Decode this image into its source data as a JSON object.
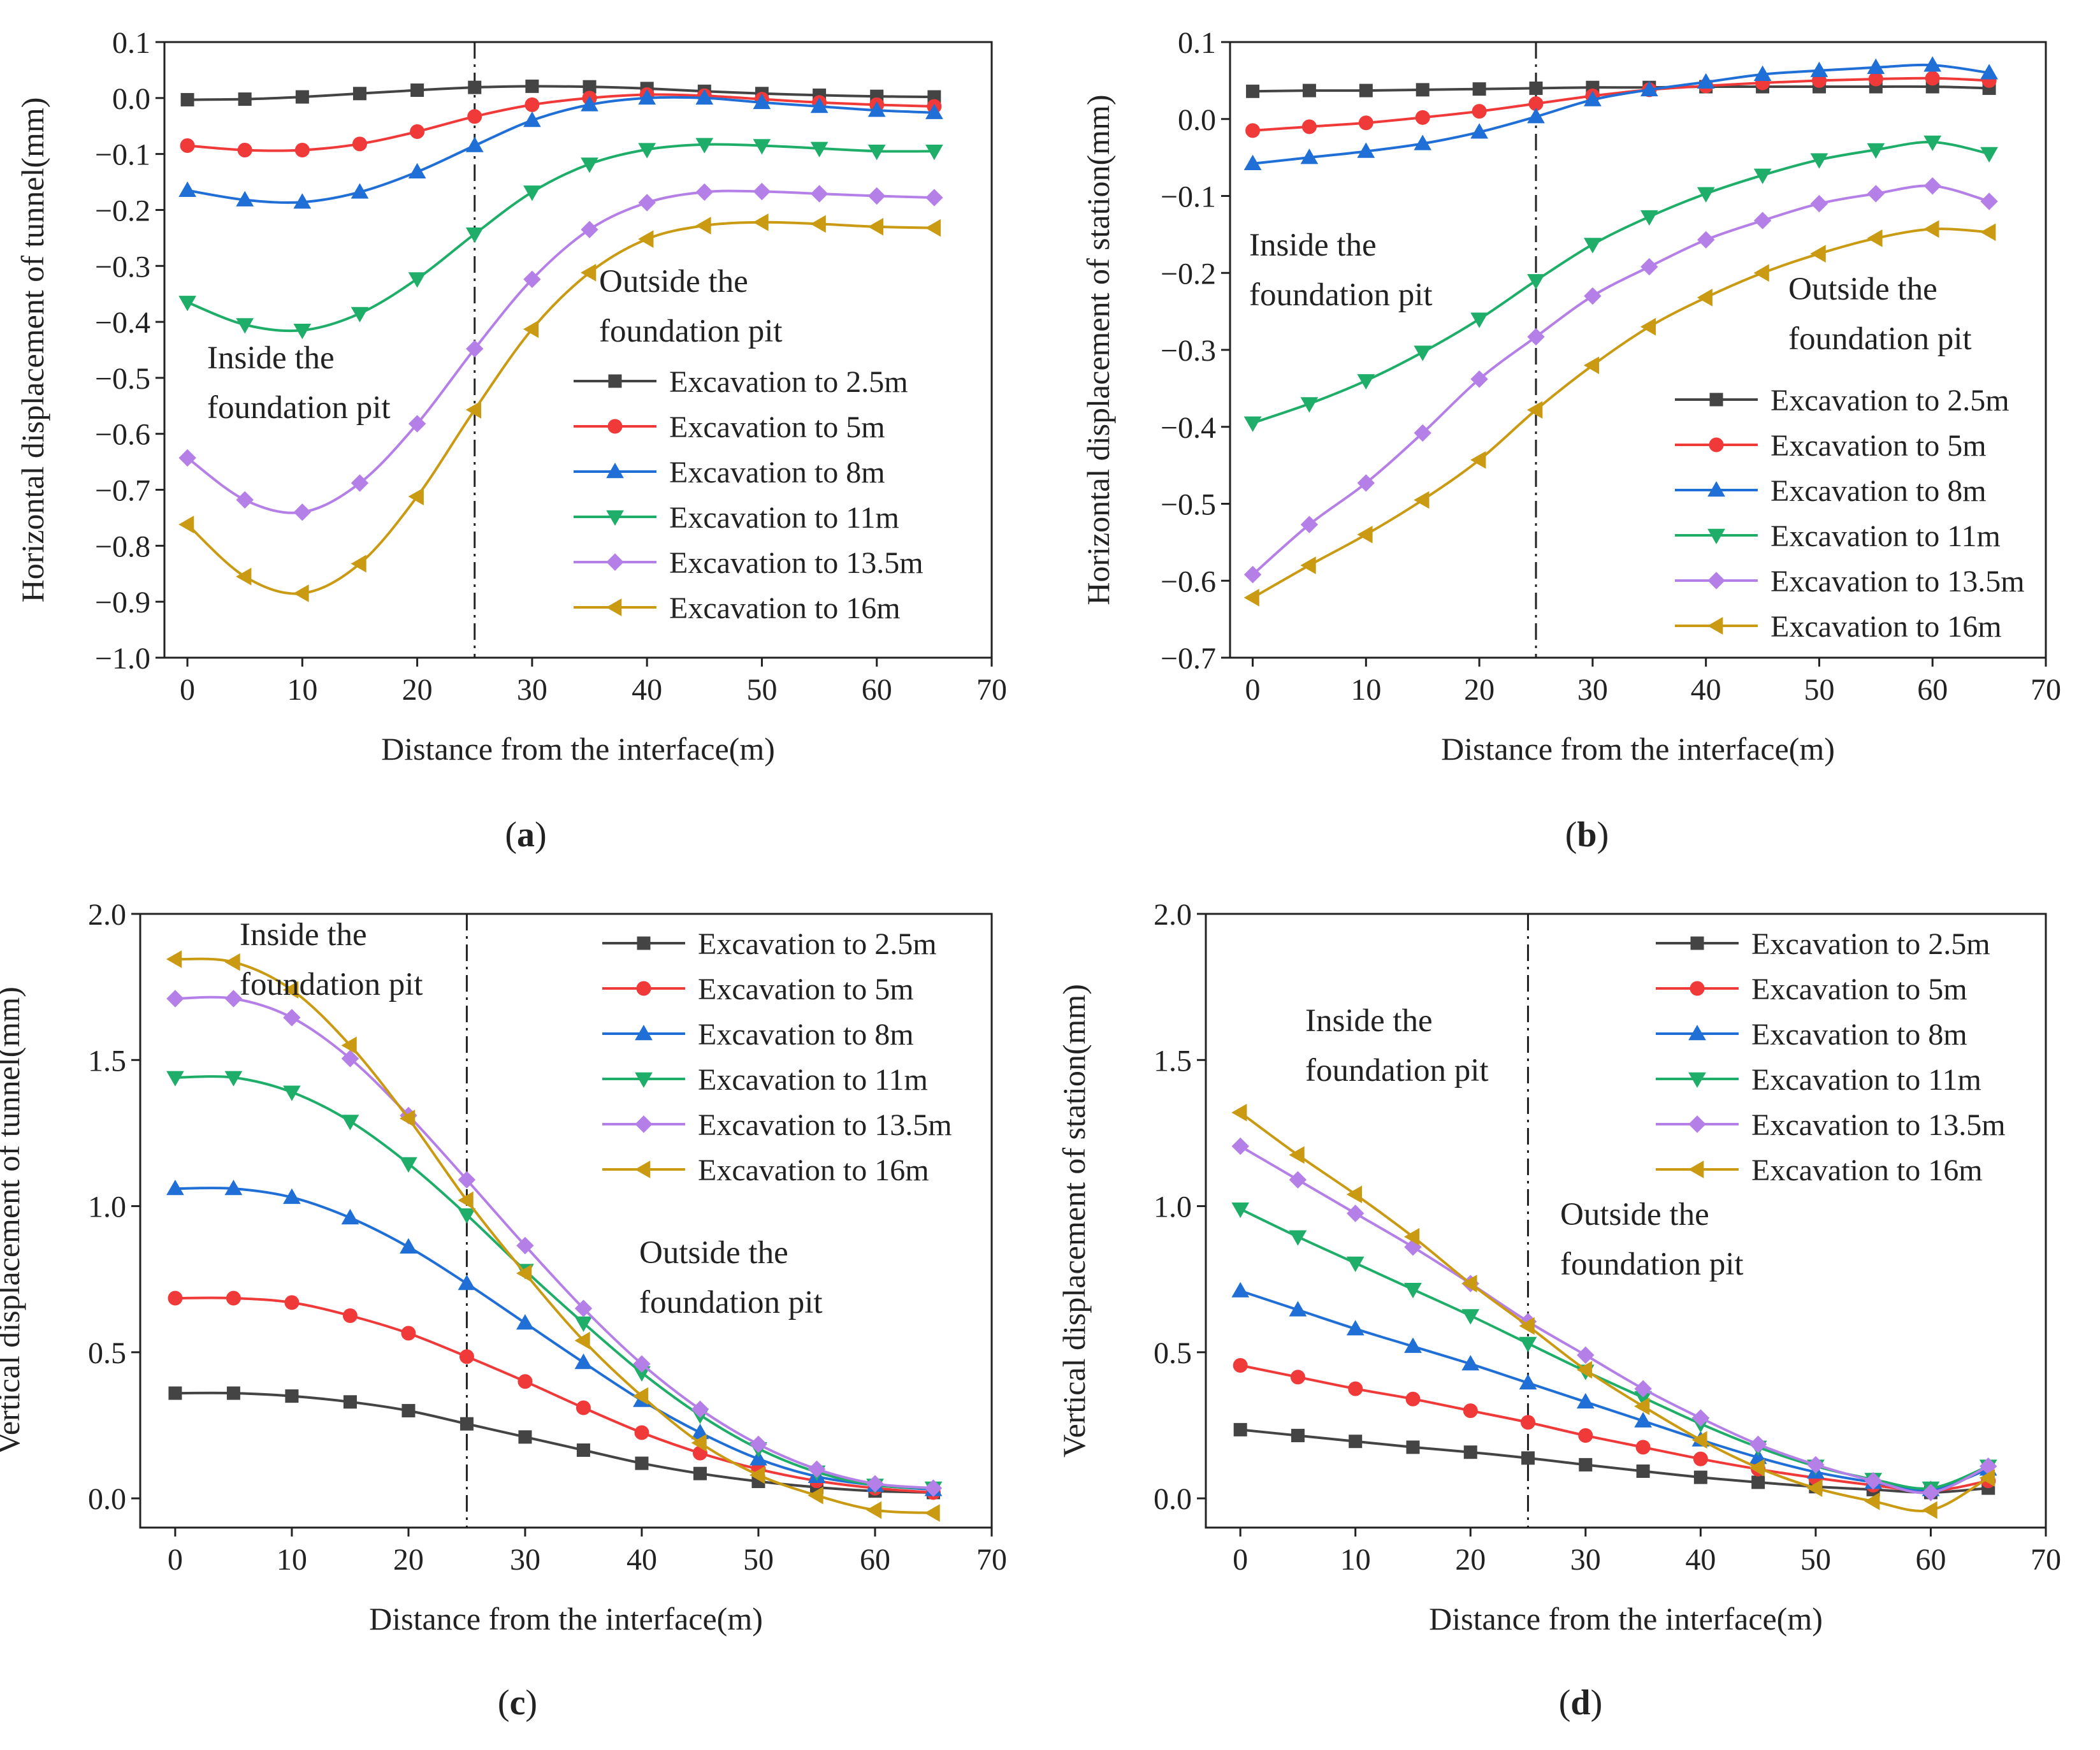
{
  "figure": {
    "series_names": [
      "Excavation to 2.5m",
      "Excavation to 5m",
      "Excavation to 8m",
      "Excavation to 11m",
      "Excavation to 13.5m",
      "Excavation to 16m"
    ],
    "colors": [
      "#444444",
      "#f03a3a",
      "#1f6fd6",
      "#1fae6a",
      "#b57fe8",
      "#c99a12"
    ],
    "markers": [
      "square",
      "circle",
      "triangle-up",
      "triangle-down",
      "diamond",
      "triangle-left"
    ]
  },
  "chart_data": [
    {
      "id": "a",
      "panel_label": "(a)",
      "type": "line",
      "xlabel": "Distance from the interface(m)",
      "ylabel": "Horizontal displacement of  tunnel(mm)",
      "xlim": [
        -2,
        70
      ],
      "ylim": [
        -1.0,
        0.1
      ],
      "xticks": [
        0,
        10,
        20,
        30,
        40,
        50,
        60,
        70
      ],
      "yticks": [
        0.1,
        0.0,
        -0.1,
        -0.2,
        -0.3,
        -0.4,
        -0.5,
        -0.6,
        -0.7,
        -0.8,
        -0.9,
        -1.0
      ],
      "ytick_labels": [
        "0.1",
        "0.0",
        "−0.1",
        "−0.2",
        "−0.3",
        "−0.4",
        "−0.5",
        "−0.6",
        "−0.7",
        "−0.8",
        "−0.9",
        "−1.0"
      ],
      "divider_x": 25,
      "x": [
        0,
        5,
        10,
        15,
        20,
        25,
        30,
        35,
        40,
        45,
        50,
        55,
        60,
        65
      ],
      "series": [
        {
          "name": "Excavation to 2.5m",
          "values": [
            -0.003,
            -0.002,
            0.002,
            0.008,
            0.014,
            0.019,
            0.021,
            0.02,
            0.017,
            0.012,
            0.008,
            0.005,
            0.003,
            0.002
          ]
        },
        {
          "name": "Excavation to 5m",
          "values": [
            -0.085,
            -0.093,
            -0.093,
            -0.082,
            -0.06,
            -0.033,
            -0.012,
            0.0,
            0.006,
            0.004,
            -0.002,
            -0.008,
            -0.012,
            -0.015
          ]
        },
        {
          "name": "Excavation to 8m",
          "values": [
            -0.165,
            -0.182,
            -0.186,
            -0.168,
            -0.132,
            -0.085,
            -0.04,
            -0.012,
            0.0,
            0.0,
            -0.008,
            -0.015,
            -0.022,
            -0.026
          ]
        },
        {
          "name": "Excavation to 11m",
          "values": [
            -0.365,
            -0.405,
            -0.415,
            -0.385,
            -0.323,
            -0.243,
            -0.168,
            -0.118,
            -0.092,
            -0.083,
            -0.085,
            -0.09,
            -0.095,
            -0.095
          ]
        },
        {
          "name": "Excavation to 13.5m",
          "values": [
            -0.643,
            -0.718,
            -0.74,
            -0.688,
            -0.582,
            -0.448,
            -0.324,
            -0.235,
            -0.187,
            -0.168,
            -0.167,
            -0.171,
            -0.175,
            -0.178
          ]
        },
        {
          "name": "Excavation to 16m",
          "values": [
            -0.762,
            -0.855,
            -0.885,
            -0.832,
            -0.712,
            -0.557,
            -0.413,
            -0.312,
            -0.252,
            -0.228,
            -0.222,
            -0.225,
            -0.23,
            -0.232
          ]
        }
      ],
      "annotations": [
        {
          "lines": [
            "Inside the",
            "foundation pit"
          ]
        },
        {
          "lines": [
            "Outside the",
            "foundation pit"
          ]
        }
      ]
    },
    {
      "id": "b",
      "panel_label": "(b)",
      "type": "line",
      "xlabel": "Distance from the interface(m)",
      "ylabel": "Horizontal displacement of  station(mm)",
      "xlim": [
        -2,
        70
      ],
      "ylim": [
        -0.7,
        0.1
      ],
      "xticks": [
        0,
        10,
        20,
        30,
        40,
        50,
        60,
        70
      ],
      "yticks": [
        0.1,
        0.0,
        -0.1,
        -0.2,
        -0.3,
        -0.4,
        -0.5,
        -0.6,
        -0.7
      ],
      "ytick_labels": [
        "0.1",
        "0.0",
        "−0.1",
        "−0.2",
        "−0.3",
        "−0.4",
        "−0.5",
        "−0.6",
        "−0.7"
      ],
      "divider_x": 25,
      "x": [
        0,
        5,
        10,
        15,
        20,
        25,
        30,
        35,
        40,
        45,
        50,
        55,
        60,
        65
      ],
      "series": [
        {
          "name": "Excavation to 2.5m",
          "values": [
            0.036,
            0.037,
            0.037,
            0.038,
            0.039,
            0.04,
            0.041,
            0.041,
            0.042,
            0.042,
            0.042,
            0.042,
            0.042,
            0.04
          ]
        },
        {
          "name": "Excavation to 5m",
          "values": [
            -0.015,
            -0.01,
            -0.005,
            0.002,
            0.01,
            0.02,
            0.03,
            0.038,
            0.043,
            0.047,
            0.05,
            0.052,
            0.053,
            0.05
          ]
        },
        {
          "name": "Excavation to 8m",
          "values": [
            -0.058,
            -0.05,
            -0.042,
            -0.032,
            -0.017,
            0.003,
            0.025,
            0.038,
            0.048,
            0.058,
            0.063,
            0.067,
            0.07,
            0.06
          ]
        },
        {
          "name": "Excavation to 11m",
          "values": [
            -0.395,
            -0.37,
            -0.34,
            -0.303,
            -0.26,
            -0.21,
            -0.163,
            -0.127,
            -0.097,
            -0.073,
            -0.053,
            -0.04,
            -0.03,
            -0.045
          ]
        },
        {
          "name": "Excavation to 13.5m",
          "values": [
            -0.592,
            -0.527,
            -0.473,
            -0.408,
            -0.338,
            -0.283,
            -0.23,
            -0.192,
            -0.157,
            -0.132,
            -0.11,
            -0.097,
            -0.087,
            -0.107
          ]
        },
        {
          "name": "Excavation to 16m",
          "values": [
            -0.622,
            -0.58,
            -0.54,
            -0.495,
            -0.443,
            -0.378,
            -0.32,
            -0.27,
            -0.232,
            -0.2,
            -0.175,
            -0.155,
            -0.143,
            -0.147
          ]
        }
      ],
      "annotations": [
        {
          "lines": [
            "Inside the",
            "foundation pit"
          ]
        },
        {
          "lines": [
            "Outside the",
            "foundation pit"
          ]
        }
      ]
    },
    {
      "id": "c",
      "panel_label": "(c)",
      "type": "line",
      "xlabel": "Distance from the interface(m)",
      "ylabel": "Vertical displacement of  tunnel(mm)",
      "xlim": [
        -3,
        70
      ],
      "ylim": [
        -0.1,
        2.0
      ],
      "xticks": [
        0,
        10,
        20,
        30,
        40,
        50,
        60,
        70
      ],
      "yticks": [
        0.0,
        0.5,
        1.0,
        1.5,
        2.0
      ],
      "ytick_labels": [
        "0.0",
        "0.5",
        "1.0",
        "1.5",
        "2.0"
      ],
      "divider_x": 25,
      "x": [
        0,
        5,
        10,
        15,
        20,
        25,
        30,
        35,
        40,
        45,
        50,
        55,
        60,
        65
      ],
      "series": [
        {
          "name": "Excavation to 2.5m",
          "values": [
            0.36,
            0.36,
            0.35,
            0.33,
            0.3,
            0.255,
            0.21,
            0.165,
            0.12,
            0.085,
            0.058,
            0.038,
            0.025,
            0.02
          ]
        },
        {
          "name": "Excavation to 5m",
          "values": [
            0.685,
            0.685,
            0.67,
            0.625,
            0.565,
            0.485,
            0.4,
            0.31,
            0.225,
            0.155,
            0.1,
            0.06,
            0.035,
            0.02
          ]
        },
        {
          "name": "Excavation to 8m",
          "values": [
            1.06,
            1.06,
            1.03,
            0.96,
            0.86,
            0.735,
            0.6,
            0.465,
            0.335,
            0.225,
            0.135,
            0.075,
            0.045,
            0.03
          ]
        },
        {
          "name": "Excavation to 11m",
          "values": [
            1.44,
            1.44,
            1.39,
            1.29,
            1.145,
            0.97,
            0.78,
            0.6,
            0.43,
            0.285,
            0.17,
            0.09,
            0.045,
            0.035
          ]
        },
        {
          "name": "Excavation to 13.5m",
          "values": [
            1.71,
            1.71,
            1.645,
            1.505,
            1.31,
            1.09,
            0.865,
            0.65,
            0.46,
            0.305,
            0.185,
            0.1,
            0.05,
            0.035
          ]
        },
        {
          "name": "Excavation to 16m",
          "values": [
            1.845,
            1.835,
            1.74,
            1.55,
            1.3,
            1.02,
            0.77,
            0.54,
            0.35,
            0.19,
            0.08,
            0.01,
            -0.04,
            -0.05
          ]
        }
      ],
      "annotations": [
        {
          "lines": [
            "Inside the",
            "foundation pit"
          ]
        },
        {
          "lines": [
            "Outside the",
            "foundation pit"
          ]
        }
      ]
    },
    {
      "id": "d",
      "panel_label": "(d)",
      "type": "line",
      "xlabel": "Distance from the interface(m)",
      "ylabel": "Vertical displacement of  station(mm)",
      "xlim": [
        -3,
        70
      ],
      "ylim": [
        -0.1,
        2.0
      ],
      "xticks": [
        0,
        10,
        20,
        30,
        40,
        50,
        60,
        70
      ],
      "yticks": [
        0.0,
        0.5,
        1.0,
        1.5,
        2.0
      ],
      "ytick_labels": [
        "0.0",
        "0.5",
        "1.0",
        "1.5",
        "2.0"
      ],
      "divider_x": 25,
      "x": [
        0,
        5,
        10,
        15,
        20,
        25,
        30,
        35,
        40,
        45,
        50,
        55,
        60,
        65
      ],
      "series": [
        {
          "name": "Excavation to 2.5m",
          "values": [
            0.235,
            0.215,
            0.195,
            0.175,
            0.158,
            0.138,
            0.115,
            0.093,
            0.072,
            0.055,
            0.04,
            0.03,
            0.02,
            0.035
          ]
        },
        {
          "name": "Excavation to 5m",
          "values": [
            0.455,
            0.415,
            0.375,
            0.34,
            0.3,
            0.26,
            0.215,
            0.175,
            0.135,
            0.1,
            0.07,
            0.045,
            0.025,
            0.06
          ]
        },
        {
          "name": "Excavation to 8m",
          "values": [
            0.71,
            0.645,
            0.58,
            0.52,
            0.46,
            0.395,
            0.33,
            0.265,
            0.2,
            0.14,
            0.09,
            0.055,
            0.03,
            0.1
          ]
        },
        {
          "name": "Excavation to 11m",
          "values": [
            0.99,
            0.895,
            0.805,
            0.715,
            0.625,
            0.53,
            0.435,
            0.345,
            0.255,
            0.175,
            0.11,
            0.065,
            0.035,
            0.11
          ]
        },
        {
          "name": "Excavation to 13.5m",
          "values": [
            1.205,
            1.09,
            0.975,
            0.86,
            0.735,
            0.605,
            0.49,
            0.375,
            0.275,
            0.185,
            0.115,
            0.06,
            0.02,
            0.11
          ]
        },
        {
          "name": "Excavation to 16m",
          "values": [
            1.32,
            1.175,
            1.04,
            0.895,
            0.735,
            0.59,
            0.44,
            0.315,
            0.2,
            0.105,
            0.035,
            -0.01,
            -0.04,
            0.07
          ]
        }
      ],
      "annotations": [
        {
          "lines": [
            "Inside the",
            "foundation pit"
          ]
        },
        {
          "lines": [
            "Outside the",
            "foundation pit"
          ]
        }
      ]
    }
  ]
}
